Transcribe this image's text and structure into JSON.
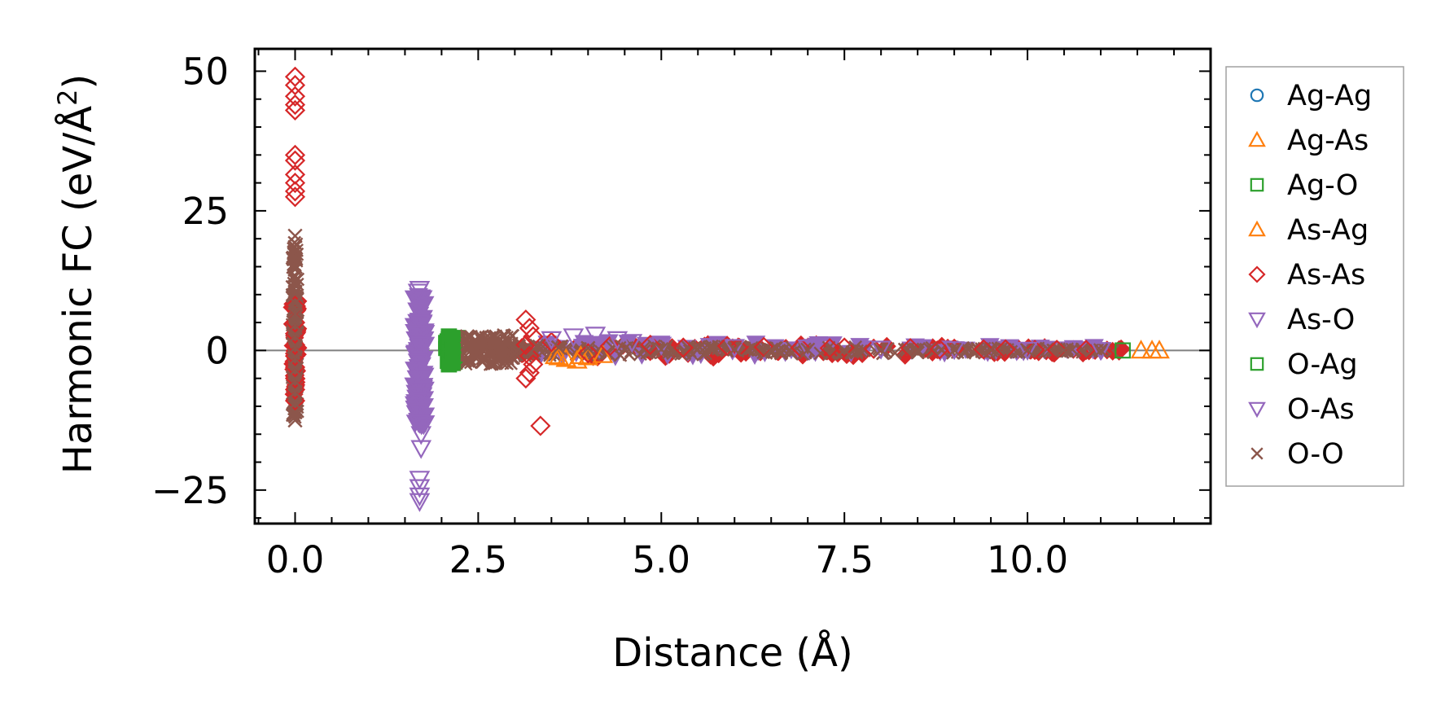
{
  "chart_data": {
    "type": "scatter",
    "title": "",
    "xlabel": "Distance (Å)",
    "ylabel": "Harmonic FC (eV/Å²)",
    "ylabel_main": "Harmonic FC (eV/Å",
    "ylabel_sup": "2",
    "ylabel_close": ")",
    "xlim": [
      -0.55,
      12.5
    ],
    "ylim": [
      -31,
      54
    ],
    "xticks": [
      0.0,
      2.5,
      5.0,
      7.5,
      10.0
    ],
    "xtick_labels": [
      "0.0",
      "2.5",
      "5.0",
      "7.5",
      "10.0"
    ],
    "yticks": [
      -25,
      0,
      25,
      50
    ],
    "ytick_labels": [
      "−25",
      "0",
      "25",
      "50"
    ],
    "zero_line": true,
    "grid": false,
    "legend_position": "outside-right",
    "series": [
      {
        "name": "Ag-Ag",
        "marker": "circle",
        "color": "#1f77b4",
        "filled": false,
        "points": []
      },
      {
        "name": "Ag-As",
        "marker": "triangle-up",
        "color": "#ff7f0e",
        "filled": false,
        "points": [
          [
            3.55,
            -1.0
          ],
          [
            3.7,
            -1.5
          ],
          [
            3.85,
            -1.8
          ],
          [
            4.0,
            -1.2
          ],
          [
            4.2,
            -0.8
          ],
          [
            11.55,
            0.0
          ],
          [
            11.8,
            0.0
          ]
        ]
      },
      {
        "name": "Ag-O",
        "marker": "square",
        "color": "#2ca02c",
        "filled": true,
        "points": [
          [
            2.1,
            2.5
          ],
          [
            2.1,
            1.5
          ],
          [
            2.1,
            0.5
          ],
          [
            2.1,
            -0.5
          ],
          [
            2.1,
            -1.5
          ],
          [
            2.1,
            -2.5
          ],
          [
            2.15,
            2.0
          ],
          [
            2.15,
            0.0
          ],
          [
            2.15,
            -2.0
          ]
        ]
      },
      {
        "name": "As-Ag",
        "marker": "triangle-up",
        "color": "#ff7f0e",
        "filled": false,
        "points": [
          [
            3.6,
            -1.2
          ],
          [
            3.9,
            -1.0
          ],
          [
            11.7,
            0.0
          ]
        ]
      },
      {
        "name": "As-As",
        "marker": "diamond",
        "color": "#d62728",
        "filled": false,
        "points": [
          [
            0.0,
            49.0
          ],
          [
            0.0,
            47.5
          ],
          [
            0.0,
            45.5
          ],
          [
            0.0,
            44.0
          ],
          [
            0.0,
            43.0
          ],
          [
            0.0,
            35.0
          ],
          [
            0.0,
            34.0
          ],
          [
            0.0,
            31.5
          ],
          [
            0.0,
            30.0
          ],
          [
            0.0,
            28.5
          ],
          [
            0.0,
            27.5
          ],
          [
            0.0,
            8.0
          ],
          [
            0.0,
            5.0
          ],
          [
            0.0,
            3.0
          ],
          [
            0.0,
            1.0
          ],
          [
            0.0,
            -1.0
          ],
          [
            0.0,
            -3.0
          ],
          [
            0.0,
            -5.0
          ],
          [
            0.0,
            -7.0
          ],
          [
            0.0,
            -9.0
          ],
          [
            3.15,
            5.5
          ],
          [
            3.2,
            4.0
          ],
          [
            3.25,
            2.5
          ],
          [
            3.15,
            1.0
          ],
          [
            3.2,
            -1.0
          ],
          [
            3.25,
            -2.5
          ],
          [
            3.2,
            -4.0
          ],
          [
            3.15,
            -5.0
          ],
          [
            3.35,
            -13.5
          ],
          [
            3.5,
            1.5
          ],
          [
            4.0,
            -0.5
          ],
          [
            4.3,
            0.8
          ],
          [
            4.85,
            1.0
          ],
          [
            5.3,
            0.5
          ],
          [
            5.9,
            0.8
          ],
          [
            6.05,
            0.5
          ],
          [
            6.4,
            0.6
          ],
          [
            6.9,
            0.5
          ],
          [
            7.3,
            0.4
          ],
          [
            7.5,
            0.5
          ],
          [
            7.9,
            0.3
          ],
          [
            8.4,
            0.4
          ],
          [
            8.8,
            0.2
          ],
          [
            9.0,
            0.3
          ],
          [
            9.4,
            0.2
          ],
          [
            9.7,
            0.2
          ],
          [
            10.1,
            0.1
          ],
          [
            10.4,
            0.1
          ],
          [
            10.8,
            0.1
          ],
          [
            11.25,
            0.0
          ]
        ]
      },
      {
        "name": "As-O",
        "marker": "triangle-down",
        "color": "#9467bd",
        "filled": false,
        "points": [
          [
            1.7,
            11.0
          ],
          [
            1.7,
            9.0
          ],
          [
            1.7,
            7.0
          ],
          [
            1.7,
            5.0
          ],
          [
            1.7,
            3.0
          ],
          [
            1.7,
            1.0
          ],
          [
            1.7,
            -1.0
          ],
          [
            1.7,
            -3.0
          ],
          [
            1.7,
            -5.0
          ],
          [
            1.7,
            -7.0
          ],
          [
            1.7,
            -9.0
          ],
          [
            1.7,
            -11.0
          ],
          [
            1.7,
            -13.0
          ],
          [
            1.72,
            -15.0
          ],
          [
            1.72,
            -17.5
          ],
          [
            1.7,
            -23.0
          ],
          [
            1.7,
            -24.5
          ],
          [
            1.7,
            -26.0
          ],
          [
            1.7,
            -27.0
          ],
          [
            3.5,
            2.0
          ],
          [
            3.8,
            2.5
          ],
          [
            4.1,
            2.8
          ],
          [
            4.4,
            2.0
          ],
          [
            4.6,
            1.5
          ],
          [
            5.0,
            1.0
          ],
          [
            6.0,
            0.6
          ],
          [
            7.0,
            0.5
          ],
          [
            8.0,
            0.3
          ],
          [
            9.0,
            0.2
          ],
          [
            10.0,
            0.1
          ],
          [
            11.0,
            0.05
          ]
        ]
      },
      {
        "name": "O-Ag",
        "marker": "square",
        "color": "#2ca02c",
        "filled": false,
        "points": [
          [
            11.3,
            0.0
          ]
        ]
      },
      {
        "name": "O-As",
        "marker": "triangle-down",
        "color": "#9467bd",
        "filled": false,
        "points": [
          [
            1.68,
            10.5
          ],
          [
            1.68,
            -2.0
          ],
          [
            1.68,
            -8.0
          ]
        ]
      },
      {
        "name": "O-O",
        "marker": "x",
        "color": "#8c564b",
        "filled": false,
        "points": [
          [
            0.0,
            20.5
          ],
          [
            0.0,
            18.5
          ],
          [
            0.0,
            16.5
          ],
          [
            0.0,
            14.5
          ],
          [
            0.0,
            12.5
          ],
          [
            0.0,
            10.5
          ],
          [
            0.0,
            8.5
          ],
          [
            0.0,
            6.5
          ],
          [
            0.0,
            4.5
          ],
          [
            0.0,
            2.5
          ],
          [
            0.0,
            0.5
          ],
          [
            0.0,
            -1.5
          ],
          [
            0.0,
            -3.5
          ],
          [
            0.0,
            -5.5
          ],
          [
            0.0,
            -7.5
          ],
          [
            0.0,
            -9.5
          ],
          [
            0.0,
            -11.0
          ],
          [
            0.0,
            -12.5
          ],
          [
            2.35,
            2.5
          ],
          [
            2.4,
            1.0
          ],
          [
            2.5,
            -0.5
          ],
          [
            2.55,
            -2.0
          ],
          [
            2.6,
            1.5
          ],
          [
            2.7,
            -1.0
          ],
          [
            2.8,
            0.5
          ],
          [
            2.9,
            1.5
          ],
          [
            3.0,
            -0.5
          ],
          [
            3.3,
            0.8
          ],
          [
            3.6,
            0.5
          ],
          [
            4.0,
            0.4
          ],
          [
            4.5,
            0.3
          ],
          [
            5.0,
            0.2
          ],
          [
            5.5,
            0.2
          ],
          [
            6.0,
            0.2
          ],
          [
            6.5,
            0.1
          ],
          [
            7.0,
            0.1
          ],
          [
            7.5,
            0.1
          ],
          [
            8.0,
            0.1
          ],
          [
            8.5,
            0.05
          ],
          [
            9.0,
            0.05
          ],
          [
            9.5,
            0.05
          ],
          [
            10.0,
            0.03
          ],
          [
            10.5,
            0.02
          ],
          [
            11.0,
            0.01
          ]
        ]
      }
    ],
    "bands": [
      {
        "series": "As-As",
        "marker": "diamond",
        "color": "#d62728",
        "filled": true,
        "x_min": 3.05,
        "x_max": 11.3,
        "y_min": -1.6,
        "y_max": 1.6,
        "count": 90
      },
      {
        "series": "As-O",
        "marker": "triangle-down",
        "color": "#9467bd",
        "filled": true,
        "x_min": 1.62,
        "x_max": 1.78,
        "y_min": -14.0,
        "y_max": 10.0,
        "count": 90
      },
      {
        "series": "As-O",
        "marker": "triangle-down",
        "color": "#9467bd",
        "filled": true,
        "x_min": 3.3,
        "x_max": 11.2,
        "y_min": -1.2,
        "y_max": 1.8,
        "count": 80
      },
      {
        "series": "Ag-O",
        "marker": "square",
        "color": "#2ca02c",
        "filled": true,
        "x_min": 2.05,
        "x_max": 2.22,
        "y_min": -3.0,
        "y_max": 3.0,
        "count": 25
      },
      {
        "series": "As-As",
        "marker": "diamond",
        "color": "#d62728",
        "filled": true,
        "x_min": -0.04,
        "x_max": 0.04,
        "y_min": -8.0,
        "y_max": 9.0,
        "count": 40
      },
      {
        "series": "O-O",
        "marker": "x",
        "color": "#8c564b",
        "filled": false,
        "x_min": -0.04,
        "x_max": 0.04,
        "y_min": -12.0,
        "y_max": 20.0,
        "count": 120
      },
      {
        "series": "O-O",
        "marker": "x",
        "color": "#8c564b",
        "filled": false,
        "x_min": 2.3,
        "x_max": 3.0,
        "y_min": -2.5,
        "y_max": 2.8,
        "count": 110
      },
      {
        "series": "O-O",
        "marker": "x",
        "color": "#8c564b",
        "filled": false,
        "x_min": 3.0,
        "x_max": 11.2,
        "y_min": -1.0,
        "y_max": 1.0,
        "count": 230
      }
    ]
  }
}
